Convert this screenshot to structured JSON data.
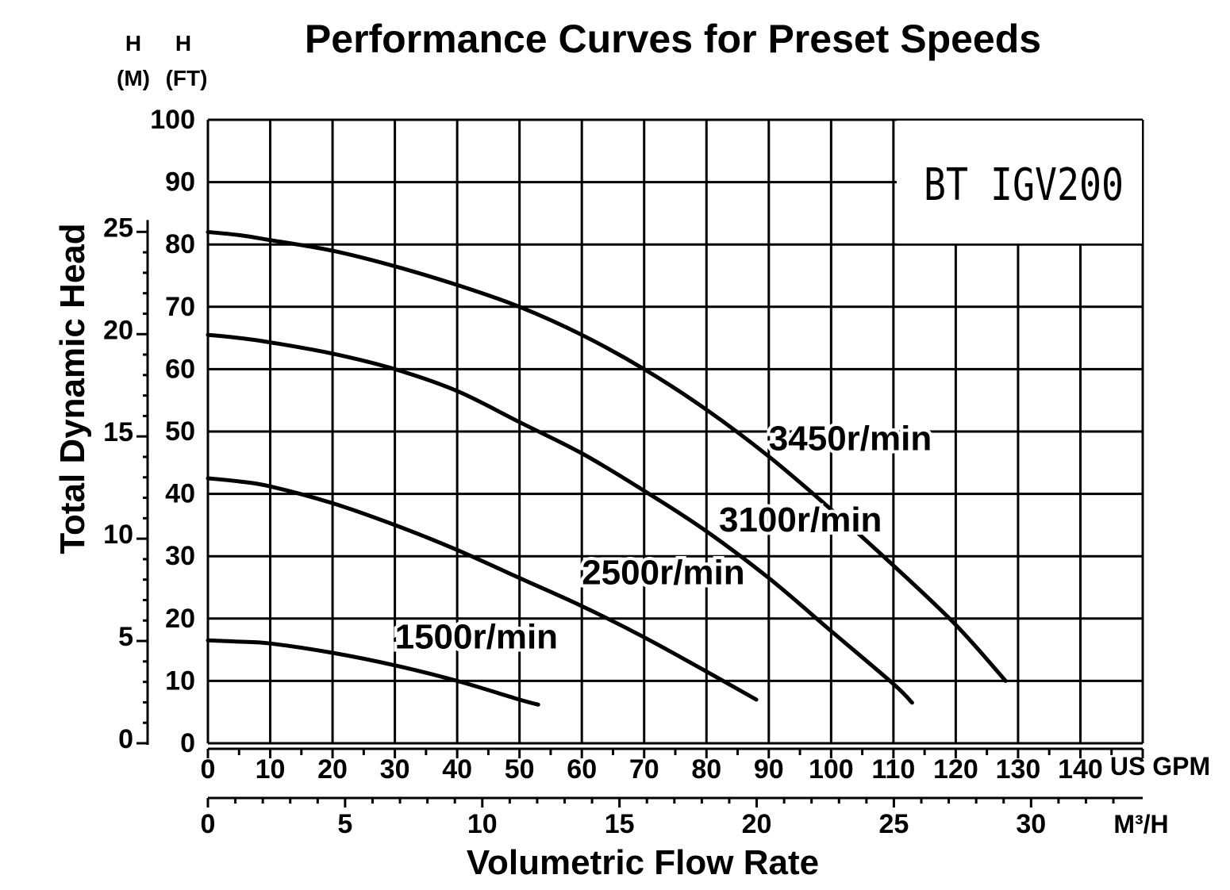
{
  "chart_data": {
    "type": "line",
    "title": "Performance Curves for Preset Speeds",
    "ylabel": "Total Dynamic Head",
    "xlabel": "Volumetric Flow Rate",
    "yaxis_ft": {
      "label_top": "H",
      "label_unit": "(FT)",
      "range": [
        0,
        100
      ],
      "ticks": [
        "0",
        "10",
        "20",
        "30",
        "40",
        "50",
        "60",
        "70",
        "80",
        "90",
        "100"
      ]
    },
    "yaxis_m": {
      "label_top": "H",
      "label_unit": "(M)",
      "ticks": [
        "0",
        "5",
        "10",
        "15",
        "20",
        "25"
      ],
      "tick_values": [
        0,
        5,
        10,
        15,
        20,
        25
      ]
    },
    "xaxis_gpm": {
      "unit": "US GPM",
      "range": [
        0,
        150
      ],
      "ticks": [
        "0",
        "10",
        "20",
        "30",
        "40",
        "50",
        "60",
        "70",
        "80",
        "90",
        "100",
        "110",
        "120",
        "130",
        "140"
      ]
    },
    "xaxis_m3h": {
      "unit": "M³/H",
      "ticks": [
        "0",
        "5",
        "10",
        "15",
        "20",
        "25",
        "30"
      ],
      "tick_values": [
        0,
        5,
        10,
        15,
        20,
        25,
        30
      ]
    },
    "grid": true,
    "model_label": "BT IGV200",
    "series": [
      {
        "name": "3450r/min",
        "x": [
          0,
          5,
          10,
          20,
          30,
          40,
          50,
          60,
          70,
          80,
          90,
          100,
          110,
          120,
          128
        ],
        "y": [
          82,
          81.5,
          80.7,
          79,
          76.5,
          73.5,
          70,
          65.5,
          60,
          53.5,
          46,
          37.5,
          28.5,
          19,
          10
        ]
      },
      {
        "name": "3100r/min",
        "x": [
          0,
          5,
          10,
          20,
          30,
          40,
          50,
          60,
          70,
          80,
          90,
          100,
          110,
          113
        ],
        "y": [
          65.5,
          65,
          64.3,
          62.5,
          60,
          56.5,
          51.5,
          46.5,
          40.5,
          34,
          26.5,
          18,
          9.5,
          6.5
        ]
      },
      {
        "name": "2500r/min",
        "x": [
          0,
          5,
          10,
          20,
          30,
          40,
          50,
          60,
          70,
          80,
          88
        ],
        "y": [
          42.5,
          42,
          41.2,
          38.5,
          35,
          31,
          26.5,
          22,
          17,
          11.5,
          7
        ]
      },
      {
        "name": "1500r/min",
        "x": [
          0,
          5,
          10,
          20,
          30,
          40,
          50,
          53
        ],
        "y": [
          16.5,
          16.3,
          16,
          14.5,
          12.5,
          10,
          7,
          6.2
        ]
      }
    ]
  }
}
